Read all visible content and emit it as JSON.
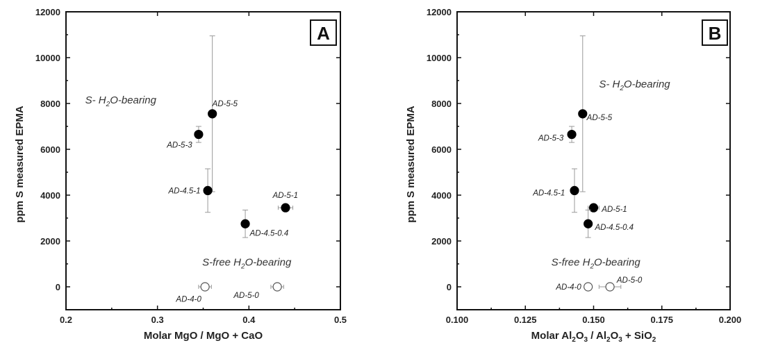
{
  "chart_data": [
    {
      "type": "scatter",
      "panel_label": "A",
      "xlabel": "Molar MgO / MgO + CaO",
      "ylabel": "ppm S measured EPMA",
      "xlim": [
        0.2,
        0.5
      ],
      "ylim": [
        -1000,
        12000
      ],
      "xticks": [
        0.2,
        0.3,
        0.4,
        0.5
      ],
      "xtick_labels": [
        "0.2",
        "0.3",
        "0.4",
        "0.5"
      ],
      "yticks": [
        0,
        2000,
        4000,
        6000,
        8000,
        10000,
        12000
      ],
      "ytick_labels": [
        "0",
        "2000",
        "4000",
        "6000",
        "8000",
        "10000",
        "12000"
      ],
      "grid": false,
      "series": [
        {
          "name": "S- H2O-bearing",
          "label_parts": [
            "S- H",
            "2",
            "O-bearing"
          ],
          "label_pos": [
            0.221,
            8000
          ],
          "marker": "filled",
          "points": [
            {
              "x": 0.36,
              "y": 7550,
              "yerr": 3400,
              "xerr": 0.003,
              "label": "AD-5-5",
              "label_pos": [
                0.36,
                8000
              ],
              "anchor": "start"
            },
            {
              "x": 0.345,
              "y": 6650,
              "yerr": 350,
              "xerr": 0.004,
              "label": "AD-5-3",
              "label_pos": [
                0.338,
                6200
              ],
              "anchor": "end"
            },
            {
              "x": 0.355,
              "y": 4200,
              "yerr": 950,
              "xerr": 0.004,
              "label": "AD-4.5-1",
              "label_pos": [
                0.347,
                4200
              ],
              "anchor": "end"
            },
            {
              "x": 0.44,
              "y": 3450,
              "yerr": 150,
              "xerr": 0.008,
              "label": "AD-5-1",
              "label_pos": [
                0.426,
                4000
              ],
              "anchor": "start"
            },
            {
              "x": 0.396,
              "y": 2750,
              "yerr": 600,
              "xerr": 0.004,
              "label": "AD-4.5-0.4",
              "label_pos": [
                0.401,
                2350
              ],
              "anchor": "start"
            }
          ]
        },
        {
          "name": "S-free H2O-bearing",
          "label_parts": [
            "S-free H",
            "2",
            "O-bearing"
          ],
          "label_pos": [
            0.349,
            920
          ],
          "marker": "open",
          "points": [
            {
              "x": 0.352,
              "y": 0,
              "yerr": 0,
              "xerr": 0.007,
              "label": "AD-4-0",
              "label_pos": [
                0.348,
                -530
              ],
              "anchor": "end"
            },
            {
              "x": 0.431,
              "y": 0,
              "yerr": 0,
              "xerr": 0.007,
              "label": "AD-5-0",
              "label_pos": [
                0.411,
                -370
              ],
              "anchor": "end"
            }
          ]
        }
      ]
    },
    {
      "type": "scatter",
      "panel_label": "B",
      "xlabel_parts": [
        "Molar Al",
        "2",
        "O",
        "3",
        " / Al",
        "2",
        "O",
        "3",
        " + SiO",
        "2"
      ],
      "xlabel": "Molar Al2O3 / Al2O3 + SiO2",
      "ylabel": "ppm S measured EPMA",
      "xlim": [
        0.1,
        0.2
      ],
      "ylim": [
        -1000,
        12000
      ],
      "xticks": [
        0.1,
        0.125,
        0.15,
        0.175,
        0.2
      ],
      "xtick_labels": [
        "0.100",
        "0.125",
        "0.150",
        "0.175",
        "0.200"
      ],
      "yticks": [
        0,
        2000,
        4000,
        6000,
        8000,
        10000,
        12000
      ],
      "ytick_labels": [
        "0",
        "2000",
        "4000",
        "6000",
        "8000",
        "10000",
        "12000"
      ],
      "grid": false,
      "series": [
        {
          "name": "S- H2O-bearing",
          "label_parts": [
            "S- H",
            "2",
            "O-bearing"
          ],
          "label_pos": [
            0.152,
            8700
          ],
          "marker": "filled",
          "points": [
            {
              "x": 0.146,
              "y": 7550,
              "yerr": 3400,
              "xerr": 0.001,
              "label": "AD-5-5",
              "label_pos": [
                0.1475,
                7400
              ],
              "anchor": "start"
            },
            {
              "x": 0.142,
              "y": 6650,
              "yerr": 350,
              "xerr": 0.001,
              "label": "AD-5-3",
              "label_pos": [
                0.139,
                6500
              ],
              "anchor": "end"
            },
            {
              "x": 0.143,
              "y": 4200,
              "yerr": 950,
              "xerr": 0.001,
              "label": "AD-4.5-1",
              "label_pos": [
                0.1395,
                4100
              ],
              "anchor": "end"
            },
            {
              "x": 0.15,
              "y": 3450,
              "yerr": 150,
              "xerr": 0.002,
              "label": "AD-5-1",
              "label_pos": [
                0.153,
                3400
              ],
              "anchor": "start"
            },
            {
              "x": 0.148,
              "y": 2750,
              "yerr": 600,
              "xerr": 0.001,
              "label": "AD-4.5-0.4",
              "label_pos": [
                0.1505,
                2600
              ],
              "anchor": "start"
            }
          ]
        },
        {
          "name": "S-free H2O-bearing",
          "label_parts": [
            "S-free H",
            "2",
            "O-bearing"
          ],
          "label_pos": [
            0.1345,
            920
          ],
          "marker": "open",
          "points": [
            {
              "x": 0.148,
              "y": 0,
              "yerr": 0,
              "xerr": 0,
              "label": "AD-4-0",
              "label_pos": [
                0.1455,
                0
              ],
              "anchor": "end"
            },
            {
              "x": 0.156,
              "y": 0,
              "yerr": 0,
              "xerr": 0.004,
              "label": "AD-5-0",
              "label_pos": [
                0.1585,
                300
              ],
              "anchor": "start"
            }
          ]
        }
      ]
    }
  ]
}
